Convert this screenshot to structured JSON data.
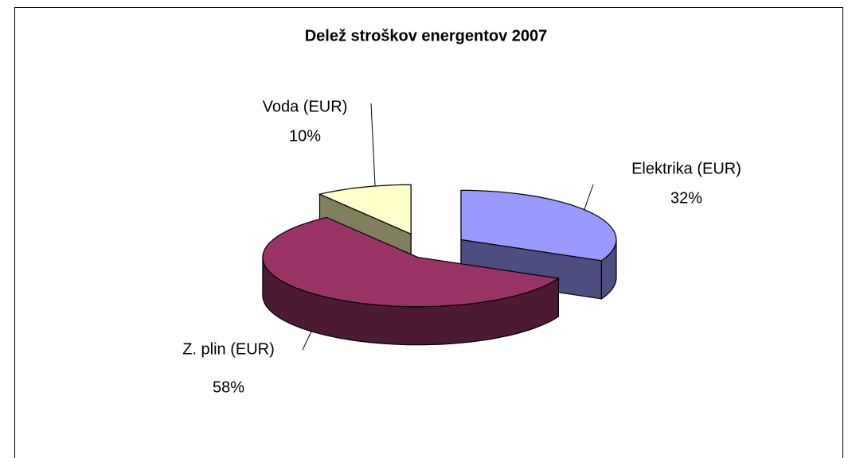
{
  "chart_data": {
    "type": "pie3d",
    "title": "Delež stroškov energentov 2007",
    "categories": [
      "Elektrika (EUR)",
      "Z. plin (EUR)",
      "Voda (EUR)"
    ],
    "values": [
      32,
      58,
      10
    ],
    "value_labels": [
      "32%",
      "58%",
      "10%"
    ],
    "colors": [
      "#9999ff",
      "#993366",
      "#ffffcc"
    ],
    "side_colors": [
      "#4d4d80",
      "#4d1a33",
      "#80805f"
    ]
  }
}
